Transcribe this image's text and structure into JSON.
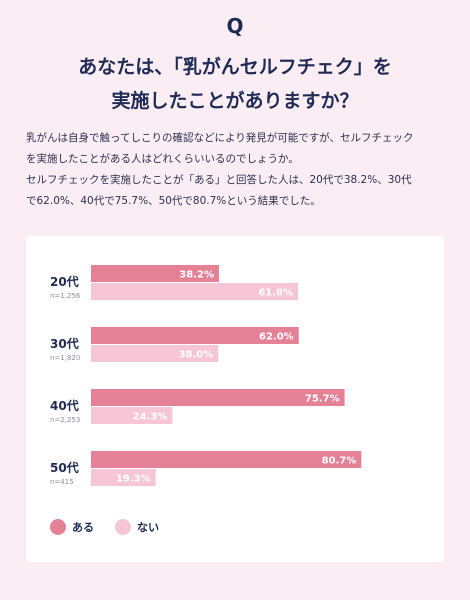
{
  "header": {
    "q_mark": "Q",
    "line1": "あなたは、「乳がんセルフチェク」を",
    "line2": "実施したことがありますか？"
  },
  "description": {
    "line1": "乳がんは自身で触ってしこりの確認などにより発見が可能ですが、セルフチェック",
    "line2": "を実施したことがある人はどれくらいいるのでしょうか。",
    "line3": "セルフチェックを実施したことが「ある」と回答した人は、20代で38.2%、30代",
    "line4": "で62.0%、40代で75.7%、50代で80.7%という結果でした。"
  },
  "colors": {
    "aru": "#e48197",
    "nai": "#f6c5d6"
  },
  "chart_data": {
    "type": "bar",
    "orientation": "horizontal",
    "categories": [
      "20代",
      "30代",
      "40代",
      "50代"
    ],
    "sample_sizes": [
      "n=1,256",
      "n=1,820",
      "n=2,253",
      "n=415"
    ],
    "series": [
      {
        "name": "ある",
        "values": [
          38.2,
          62.0,
          75.7,
          80.7
        ],
        "labels": [
          "38.2%",
          "62.0%",
          "75.7%",
          "80.7%"
        ]
      },
      {
        "name": "ない",
        "values": [
          61.8,
          38.0,
          24.3,
          19.3
        ],
        "labels": [
          "61.8%",
          "38.0%",
          "24.3%",
          "19.3%"
        ]
      }
    ],
    "xlim": [
      0,
      100
    ],
    "legend": "bottom-left",
    "grid": false
  }
}
